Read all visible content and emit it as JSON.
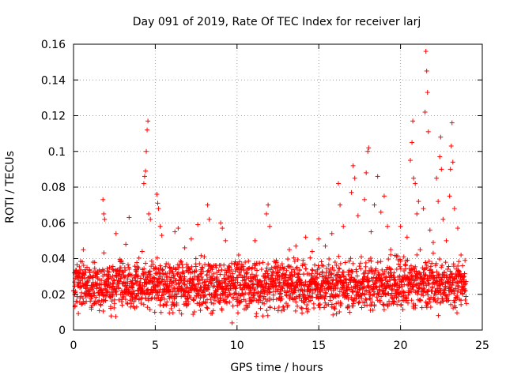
{
  "chart_data": {
    "type": "scatter",
    "title": "Day 091 of 2019, Rate Of TEC Index for receiver larj",
    "xlabel": "GPS time / hours",
    "ylabel": "ROTI / TECUs",
    "xlim": [
      0,
      25
    ],
    "ylim": [
      0,
      0.16
    ],
    "x_ticks": [
      0,
      5,
      10,
      15,
      20,
      25
    ],
    "x_tick_labels": [
      "0",
      "5",
      "10",
      "15",
      "20",
      "25"
    ],
    "y_ticks": [
      0,
      0.02,
      0.04,
      0.06,
      0.08,
      0.1,
      0.12,
      0.14,
      0.16
    ],
    "y_tick_labels": [
      "0",
      "0.02",
      "0.04",
      "0.06",
      "0.08",
      "0.1",
      "0.12",
      "0.14",
      "0.16"
    ],
    "grid": true,
    "marker": "+",
    "color": "#ff0000",
    "series": [
      {
        "name": "ROTI",
        "points": [
          [
            0.0,
            0.022
          ],
          [
            0.2,
            0.03
          ],
          [
            0.4,
            0.018
          ],
          [
            0.6,
            0.045
          ],
          [
            0.8,
            0.026
          ],
          [
            1.0,
            0.02
          ],
          [
            1.2,
            0.038
          ],
          [
            1.4,
            0.015
          ],
          [
            1.6,
            0.028
          ],
          [
            1.8,
            0.073
          ],
          [
            1.85,
            0.065
          ],
          [
            1.9,
            0.062
          ],
          [
            2.0,
            0.022
          ],
          [
            2.2,
            0.035
          ],
          [
            2.4,
            0.019
          ],
          [
            2.6,
            0.054
          ],
          [
            2.8,
            0.027
          ],
          [
            3.0,
            0.021
          ],
          [
            3.2,
            0.048
          ],
          [
            3.4,
            0.063
          ],
          [
            3.6,
            0.024
          ],
          [
            3.8,
            0.031
          ],
          [
            4.0,
            0.017
          ],
          [
            4.2,
            0.044
          ],
          [
            4.3,
            0.082
          ],
          [
            4.35,
            0.086
          ],
          [
            4.4,
            0.089
          ],
          [
            4.45,
            0.1
          ],
          [
            4.5,
            0.112
          ],
          [
            4.55,
            0.117
          ],
          [
            4.6,
            0.065
          ],
          [
            4.7,
            0.062
          ],
          [
            4.8,
            0.029
          ],
          [
            5.0,
            0.025
          ],
          [
            5.1,
            0.076
          ],
          [
            5.15,
            0.071
          ],
          [
            5.2,
            0.068
          ],
          [
            5.3,
            0.058
          ],
          [
            5.4,
            0.053
          ],
          [
            5.6,
            0.022
          ],
          [
            5.8,
            0.037
          ],
          [
            6.0,
            0.019
          ],
          [
            6.2,
            0.055
          ],
          [
            6.4,
            0.057
          ],
          [
            6.6,
            0.028
          ],
          [
            6.8,
            0.046
          ],
          [
            7.0,
            0.021
          ],
          [
            7.2,
            0.051
          ],
          [
            7.4,
            0.03
          ],
          [
            7.6,
            0.059
          ],
          [
            7.8,
            0.024
          ],
          [
            8.0,
            0.041
          ],
          [
            8.2,
            0.07
          ],
          [
            8.3,
            0.062
          ],
          [
            8.5,
            0.035
          ],
          [
            8.8,
            0.018
          ],
          [
            9.0,
            0.06
          ],
          [
            9.1,
            0.057
          ],
          [
            9.3,
            0.05
          ],
          [
            9.5,
            0.026
          ],
          [
            9.7,
            0.004
          ],
          [
            9.9,
            0.033
          ],
          [
            10.1,
            0.042
          ],
          [
            10.3,
            0.02
          ],
          [
            10.5,
            0.038
          ],
          [
            10.7,
            0.029
          ],
          [
            10.9,
            0.016
          ],
          [
            11.1,
            0.05
          ],
          [
            11.3,
            0.027
          ],
          [
            11.5,
            0.034
          ],
          [
            11.8,
            0.065
          ],
          [
            11.9,
            0.07
          ],
          [
            12.0,
            0.058
          ],
          [
            12.2,
            0.024
          ],
          [
            12.4,
            0.039
          ],
          [
            12.6,
            0.018
          ],
          [
            12.8,
            0.031
          ],
          [
            13.0,
            0.021
          ],
          [
            13.2,
            0.045
          ],
          [
            13.4,
            0.026
          ],
          [
            13.6,
            0.047
          ],
          [
            13.8,
            0.019
          ],
          [
            14.0,
            0.036
          ],
          [
            14.2,
            0.052
          ],
          [
            14.4,
            0.023
          ],
          [
            14.6,
            0.044
          ],
          [
            14.8,
            0.028
          ],
          [
            15.0,
            0.051
          ],
          [
            15.2,
            0.032
          ],
          [
            15.4,
            0.047
          ],
          [
            15.6,
            0.024
          ],
          [
            15.8,
            0.054
          ],
          [
            16.0,
            0.038
          ],
          [
            16.2,
            0.082
          ],
          [
            16.3,
            0.07
          ],
          [
            16.5,
            0.058
          ],
          [
            16.8,
            0.031
          ],
          [
            17.0,
            0.077
          ],
          [
            17.1,
            0.092
          ],
          [
            17.2,
            0.085
          ],
          [
            17.4,
            0.064
          ],
          [
            17.6,
            0.041
          ],
          [
            17.8,
            0.073
          ],
          [
            17.9,
            0.088
          ],
          [
            18.0,
            0.1
          ],
          [
            18.05,
            0.102
          ],
          [
            18.2,
            0.055
          ],
          [
            18.4,
            0.07
          ],
          [
            18.6,
            0.086
          ],
          [
            18.8,
            0.066
          ],
          [
            19.0,
            0.075
          ],
          [
            19.2,
            0.058
          ],
          [
            19.4,
            0.045
          ],
          [
            19.6,
            0.032
          ],
          [
            19.8,
            0.026
          ],
          [
            20.0,
            0.058
          ],
          [
            20.2,
            0.041
          ],
          [
            20.4,
            0.052
          ],
          [
            20.6,
            0.095
          ],
          [
            20.7,
            0.105
          ],
          [
            20.75,
            0.117
          ],
          [
            20.8,
            0.085
          ],
          [
            20.9,
            0.082
          ],
          [
            21.0,
            0.065
          ],
          [
            21.1,
            0.072
          ],
          [
            21.2,
            0.045
          ],
          [
            21.4,
            0.068
          ],
          [
            21.5,
            0.122
          ],
          [
            21.55,
            0.156
          ],
          [
            21.6,
            0.145
          ],
          [
            21.65,
            0.133
          ],
          [
            21.7,
            0.111
          ],
          [
            21.8,
            0.056
          ],
          [
            22.0,
            0.049
          ],
          [
            22.2,
            0.085
          ],
          [
            22.3,
            0.072
          ],
          [
            22.4,
            0.097
          ],
          [
            22.45,
            0.108
          ],
          [
            22.5,
            0.09
          ],
          [
            22.6,
            0.062
          ],
          [
            22.8,
            0.05
          ],
          [
            23.0,
            0.075
          ],
          [
            23.05,
            0.09
          ],
          [
            23.1,
            0.103
          ],
          [
            23.15,
            0.116
          ],
          [
            23.2,
            0.094
          ],
          [
            23.3,
            0.068
          ],
          [
            23.5,
            0.057
          ],
          [
            23.7,
            0.042
          ],
          [
            23.9,
            0.03
          ]
        ]
      }
    ],
    "baseline_band": {
      "note": "dense cluster of + markers across 0-24 h",
      "x_range": [
        0,
        24
      ],
      "y_range": [
        0.005,
        0.045
      ]
    }
  }
}
